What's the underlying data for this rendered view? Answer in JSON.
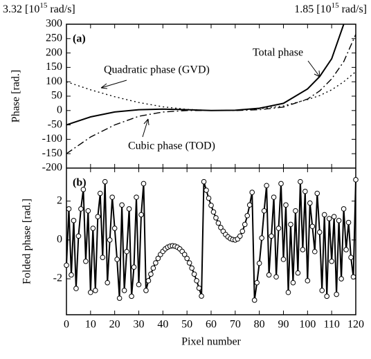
{
  "chart_data": [
    {
      "type": "line",
      "panel_label": "(a)",
      "ylabel": "Phase [rad.]",
      "top_labels": [
        {
          "pre": "3.32 [10",
          "sup": "15",
          "post": " rad/s]"
        },
        {
          "pre": "1.85 [10",
          "sup": "15",
          "post": " rad/s]"
        }
      ],
      "xlim": [
        0,
        120
      ],
      "ylim": [
        -200,
        300
      ],
      "yticks": [
        -200,
        -150,
        -100,
        -50,
        0,
        50,
        100,
        150,
        200,
        250,
        300
      ],
      "x": [
        0,
        10,
        20,
        30,
        40,
        50,
        60,
        70,
        80,
        90,
        100,
        105,
        110,
        115,
        120
      ],
      "series": [
        {
          "name": "Total phase",
          "color": "#000000",
          "style": "solid",
          "values": [
            -50,
            -22,
            -5,
            3,
            5,
            3,
            0,
            1,
            8,
            25,
            75,
            118,
            180,
            300,
            null
          ]
        },
        {
          "name": "Quadratic phase (GVD)",
          "color": "#000000",
          "style": "dotted",
          "values": [
            100,
            72,
            48,
            28,
            13,
            4,
            0,
            1,
            6,
            16,
            38,
            52,
            72,
            100,
            135
          ]
        },
        {
          "name": "Cubic phase (TOD)",
          "color": "#000000",
          "style": "dashdot",
          "values": [
            -150,
            -92,
            -50,
            -20,
            -5,
            0,
            0,
            0,
            3,
            12,
            40,
            68,
            110,
            170,
            265
          ]
        }
      ]
    },
    {
      "type": "line",
      "panel_label": "(b)",
      "ylabel": "Folded phase [rad.]",
      "xlabel": "Pixel number",
      "markers": true,
      "xlim": [
        0,
        120
      ],
      "xticks": [
        0,
        10,
        20,
        30,
        40,
        50,
        60,
        70,
        80,
        90,
        100,
        110,
        120
      ],
      "ylim": [
        -3.85,
        3.7
      ],
      "yticks": [
        -2,
        0,
        2
      ],
      "x": [
        0,
        1,
        2,
        3,
        4,
        5,
        6,
        7,
        8,
        9,
        10,
        11,
        12,
        13,
        14,
        15,
        16,
        17,
        18,
        19,
        20,
        21,
        22,
        23,
        24,
        25,
        26,
        27,
        28,
        29,
        30,
        31,
        32,
        33,
        34,
        35,
        36,
        37,
        38,
        39,
        40,
        41,
        42,
        43,
        44,
        45,
        46,
        47,
        48,
        49,
        50,
        51,
        52,
        53,
        54,
        55,
        56,
        57,
        58,
        59,
        60,
        61,
        62,
        63,
        64,
        65,
        66,
        67,
        68,
        69,
        70,
        71,
        72,
        73,
        74,
        75,
        76,
        77,
        78,
        79,
        80,
        81,
        82,
        83,
        84,
        85,
        86,
        87,
        88,
        89,
        90,
        91,
        92,
        93,
        94,
        95,
        96,
        97,
        98,
        99,
        100,
        101,
        102,
        103,
        104,
        105,
        106,
        107,
        108,
        109,
        110,
        111,
        112,
        113,
        114,
        115,
        116,
        117,
        118,
        119,
        120
      ],
      "series": [
        {
          "color": "#000000",
          "values": [
            -1.3,
            1.6,
            -1.8,
            1.0,
            -2.5,
            0.2,
            1.6,
            2.6,
            -1.1,
            1.5,
            -2.7,
            0.6,
            -2.6,
            1.2,
            2.4,
            -0.9,
            3.0,
            -2.2,
            0.0,
            2.2,
            0.6,
            -1.0,
            -3.0,
            1.8,
            -2.6,
            -0.6,
            1.6,
            -2.9,
            -1.4,
            2.2,
            -2.3,
            1.3,
            2.9,
            -2.6,
            -2.1,
            -1.76,
            -1.45,
            -1.18,
            -0.95,
            -0.75,
            -0.59,
            -0.46,
            -0.37,
            -0.32,
            -0.3,
            -0.32,
            -0.37,
            -0.46,
            -0.59,
            -0.75,
            -0.95,
            -1.18,
            -1.45,
            -1.76,
            -2.1,
            -2.48,
            -2.89,
            3.0,
            2.56,
            2.15,
            1.78,
            1.44,
            1.14,
            0.87,
            0.64,
            0.45,
            0.28,
            0.16,
            0.07,
            0.02,
            0,
            0.05,
            0.2,
            0.45,
            0.8,
            1.25,
            1.8,
            2.45,
            -3.1,
            -2.2,
            -1.2,
            0.1,
            1.5,
            2.8,
            -1.8,
            0.2,
            2.2,
            -1.9,
            0.6,
            2.9,
            -1.0,
            1.8,
            -2.7,
            0.8,
            -2.2,
            1.5,
            -1.7,
            3.0,
            -0.5,
            2.5,
            -2.1,
            1.9,
            0.7,
            -0.6,
            2.4,
            0.4,
            -2.6,
            1.3,
            -2.9,
            1.1,
            -1.1,
            1.2,
            -2.8,
            1.0,
            -2.0,
            1.6,
            -0.5,
            0.9,
            -0.9,
            -1.9,
            3.1
          ]
        }
      ]
    }
  ]
}
